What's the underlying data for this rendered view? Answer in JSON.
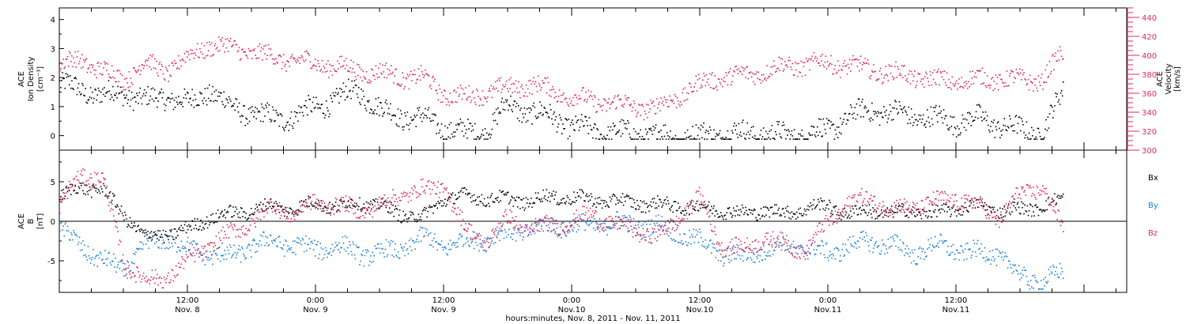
{
  "colors": {
    "black": "#000000",
    "blue": "#1f7fd6",
    "red": "#e0295a"
  },
  "x_axis": {
    "title": "hours:minutes, Nov. 8, 2011 - Nov. 11, 2011",
    "range_hours": [
      0,
      100
    ],
    "ticks": [
      {
        "t": 12,
        "time": "12:00",
        "date": "Nov. 8"
      },
      {
        "t": 24,
        "time": "0:00",
        "date": "Nov. 9"
      },
      {
        "t": 36,
        "time": "12:00",
        "date": "Nov. 9"
      },
      {
        "t": 48,
        "time": "0:00",
        "date": "Nov.10"
      },
      {
        "t": 60,
        "time": "12:00",
        "date": "Nov.10"
      },
      {
        "t": 72,
        "time": "0:00",
        "date": "Nov.11"
      },
      {
        "t": 84,
        "time": "12:00",
        "date": "Nov.11"
      }
    ]
  },
  "chart_data": [
    {
      "type": "scatter",
      "left_label": {
        "line1": "ACE",
        "line2": "Ion Density",
        "line3": "[cm⁻³]"
      },
      "right_label": {
        "line1": "ACE",
        "line2": "Velocity",
        "line3": "[km/s]"
      },
      "ylim_left": [
        -0.5,
        4.4
      ],
      "ylim_right": [
        300,
        450
      ],
      "left_ticks": [
        "0",
        "1",
        "2",
        "3",
        "4"
      ],
      "right_ticks": [
        "300",
        "320",
        "340",
        "360",
        "380",
        "400",
        "420",
        "440"
      ],
      "series": [
        {
          "axis": "left",
          "x": [
            0,
            2,
            4,
            6,
            8,
            10,
            12,
            14,
            16,
            18,
            20,
            22,
            24,
            26,
            28,
            30,
            32,
            34,
            36,
            38,
            40,
            42,
            44,
            46,
            48,
            50,
            52,
            54,
            56,
            58,
            60,
            62,
            64,
            66,
            68,
            70,
            72,
            74,
            76,
            78,
            80,
            82,
            84,
            86,
            88,
            90,
            92,
            94
          ],
          "values": [
            1.8,
            1.6,
            1.4,
            1.5,
            1.2,
            1.4,
            1.1,
            1.6,
            1.0,
            0.8,
            0.6,
            0.7,
            1.0,
            1.3,
            1.6,
            0.9,
            0.7,
            0.6,
            0.3,
            0.1,
            0.2,
            1.1,
            0.8,
            0.7,
            0.3,
            0.2,
            0.1,
            0.1,
            0.0,
            0.0,
            0.0,
            0.1,
            0.1,
            0.1,
            0.0,
            0.1,
            0.2,
            0.7,
            0.9,
            0.8,
            0.7,
            0.6,
            0.5,
            0.6,
            0.4,
            0.2,
            0.1,
            1.5
          ]
        },
        {
          "axis": "right",
          "x": [
            0,
            2,
            4,
            6,
            8,
            10,
            12,
            14,
            16,
            18,
            20,
            22,
            24,
            26,
            28,
            30,
            32,
            34,
            36,
            38,
            40,
            42,
            44,
            46,
            48,
            50,
            52,
            54,
            56,
            58,
            60,
            62,
            64,
            66,
            68,
            70,
            72,
            74,
            76,
            78,
            80,
            82,
            84,
            86,
            88,
            90,
            92,
            94
          ],
          "values": [
            390,
            396,
            384,
            376,
            392,
            384,
            398,
            412,
            408,
            404,
            398,
            395,
            392,
            389,
            384,
            382,
            378,
            377,
            360,
            356,
            362,
            366,
            370,
            364,
            356,
            352,
            350,
            346,
            345,
            358,
            370,
            378,
            379,
            384,
            389,
            391,
            393,
            389,
            386,
            381,
            379,
            374,
            373,
            375,
            376,
            374,
            375,
            402
          ]
        }
      ]
    },
    {
      "type": "scatter",
      "left_label": {
        "line1": "ACE",
        "line2": "B",
        "line3": "[nT]"
      },
      "ylim": [
        -9,
        9
      ],
      "ticks": [
        "-5",
        "0",
        "5"
      ],
      "legend": [
        "Bx",
        "By",
        "Bz"
      ],
      "series": [
        {
          "name": "Bx",
          "x": [
            0,
            2,
            4,
            6,
            8,
            10,
            12,
            14,
            16,
            18,
            20,
            22,
            24,
            26,
            28,
            30,
            32,
            34,
            36,
            38,
            40,
            42,
            44,
            46,
            48,
            50,
            52,
            54,
            56,
            58,
            60,
            62,
            64,
            66,
            68,
            70,
            72,
            74,
            76,
            78,
            80,
            82,
            84,
            86,
            88,
            90,
            92,
            94
          ],
          "values": [
            3.0,
            4.5,
            4.0,
            1.0,
            -2.0,
            -1.5,
            -1.0,
            0.5,
            1.0,
            1.5,
            2.0,
            1.5,
            2.5,
            1.8,
            2.5,
            2.0,
            1.0,
            0.5,
            3.0,
            3.2,
            3.0,
            2.8,
            2.6,
            3.2,
            3.0,
            2.8,
            2.6,
            2.4,
            2.2,
            2.0,
            1.8,
            1.5,
            1.0,
            1.5,
            1.0,
            1.8,
            2.0,
            1.0,
            1.5,
            1.0,
            1.5,
            1.0,
            1.8,
            2.0,
            1.5,
            1.5,
            2.0,
            2.8
          ]
        },
        {
          "name": "By",
          "x": [
            0,
            2,
            4,
            6,
            8,
            10,
            12,
            14,
            16,
            18,
            20,
            22,
            24,
            26,
            28,
            30,
            32,
            34,
            36,
            38,
            40,
            42,
            44,
            46,
            48,
            50,
            52,
            54,
            56,
            58,
            60,
            62,
            64,
            66,
            68,
            70,
            72,
            74,
            76,
            78,
            80,
            82,
            84,
            86,
            88,
            90,
            92,
            94
          ],
          "values": [
            -1.0,
            -3.0,
            -5.0,
            -6.0,
            -3.0,
            -2.0,
            -3.5,
            -4.0,
            -4.5,
            -3.0,
            -2.5,
            -3.0,
            -3.5,
            -3.0,
            -4.0,
            -4.0,
            -3.5,
            -2.0,
            -3.0,
            -2.5,
            -2.0,
            -1.5,
            -1.0,
            -0.5,
            -0.5,
            -0.5,
            0.0,
            -0.5,
            -0.5,
            -1.5,
            -2.5,
            -4.0,
            -4.5,
            -3.5,
            -3.0,
            -3.5,
            -4.0,
            -3.0,
            -2.5,
            -3.0,
            -4.0,
            -3.0,
            -3.5,
            -4.0,
            -4.0,
            -7.0,
            -7.5,
            -6.5
          ]
        },
        {
          "name": "Bz",
          "x": [
            0,
            2,
            4,
            6,
            8,
            10,
            12,
            14,
            16,
            18,
            20,
            22,
            24,
            26,
            28,
            30,
            32,
            34,
            36,
            38,
            40,
            42,
            44,
            46,
            48,
            50,
            52,
            54,
            56,
            58,
            60,
            62,
            64,
            66,
            68,
            70,
            72,
            74,
            76,
            78,
            80,
            82,
            84,
            86,
            88,
            90,
            92,
            94
          ],
          "values": [
            2.0,
            6.0,
            5.5,
            -5.0,
            -7.5,
            -7.0,
            -5.0,
            -3.0,
            -1.5,
            0.0,
            2.0,
            1.0,
            2.5,
            2.0,
            1.5,
            2.0,
            3.5,
            4.0,
            4.5,
            -1.0,
            -2.5,
            0.5,
            -1.0,
            -0.5,
            0.0,
            1.0,
            -0.5,
            -1.0,
            -2.0,
            0.5,
            3.0,
            -3.0,
            -3.5,
            -2.0,
            -3.0,
            -3.5,
            0.0,
            2.5,
            3.0,
            1.5,
            2.0,
            2.5,
            3.0,
            2.0,
            0.5,
            3.5,
            4.5,
            -1.0
          ]
        }
      ]
    }
  ]
}
